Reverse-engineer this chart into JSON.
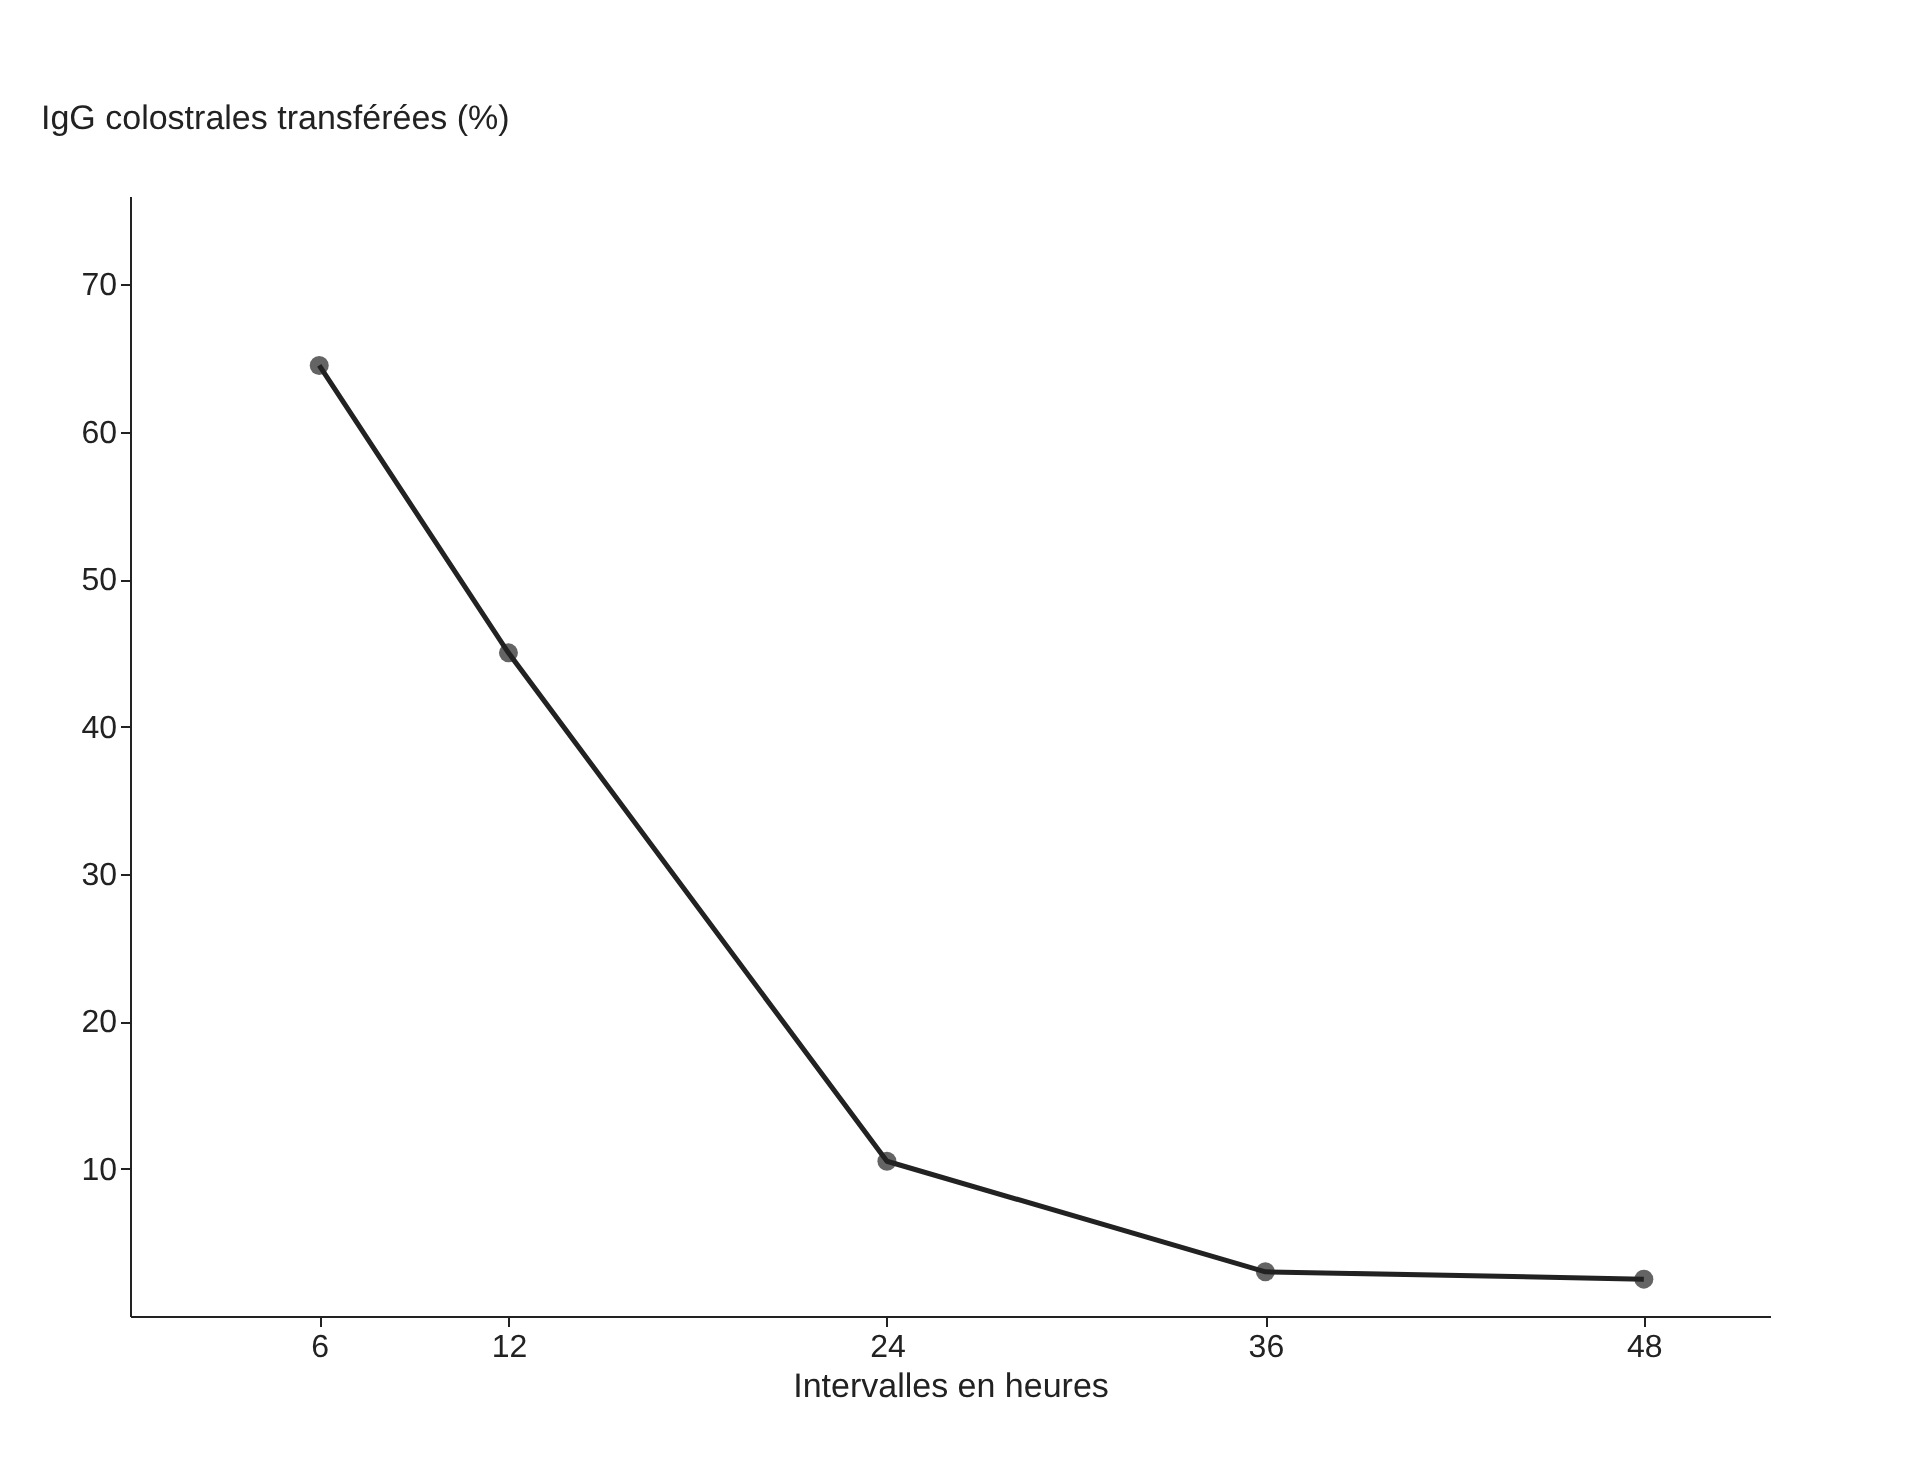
{
  "chart_data": {
    "type": "line",
    "xlabel": "Intervalles en heures",
    "ylabel": "IgG colostrales transférées (%)",
    "x": [
      6,
      12,
      24,
      36,
      48
    ],
    "series": [
      {
        "color": "#222222",
        "values": [
          64.5,
          45,
          10.5,
          3,
          2.5
        ]
      }
    ],
    "xlim": [
      0,
      52
    ],
    "xticks": [
      6,
      12,
      24,
      36,
      48
    ],
    "ylim": [
      0,
      76
    ],
    "yticks": [
      10,
      20,
      30,
      40,
      50,
      60,
      70
    ],
    "grid": false,
    "legend": false,
    "marker": "circle",
    "line_style": "solid"
  }
}
